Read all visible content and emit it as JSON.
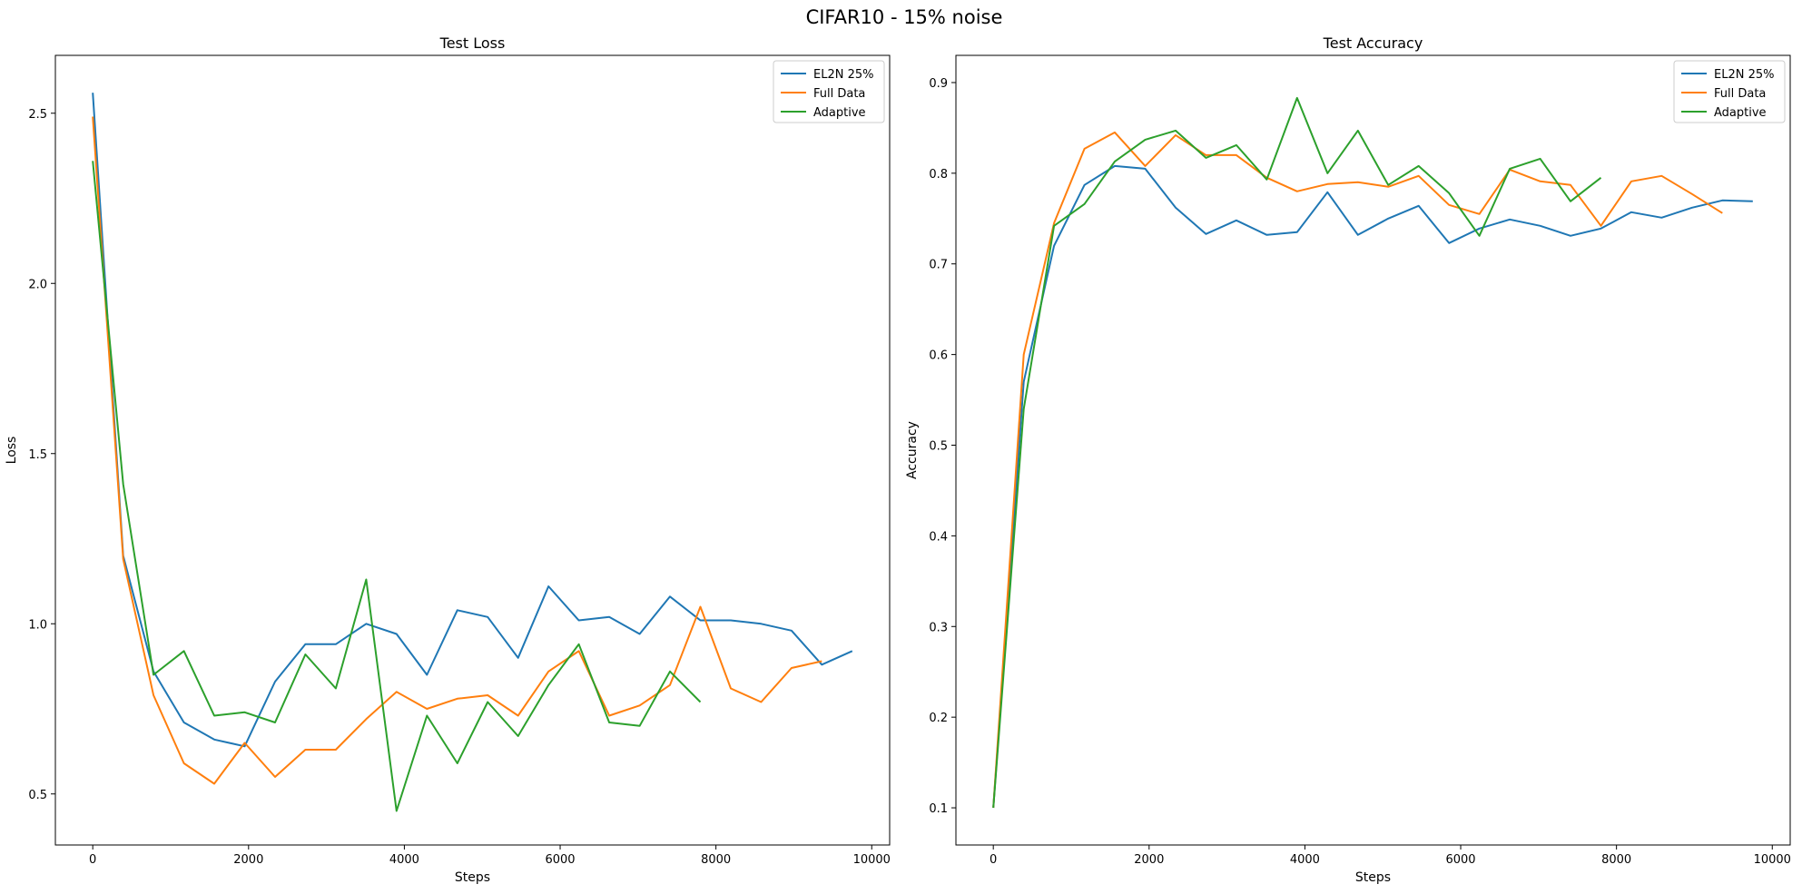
{
  "figure": {
    "title": "CIFAR10 - 15% noise"
  },
  "colors": {
    "el2n": "#1f77b4",
    "full": "#ff7f0e",
    "adaptive": "#2ca02c"
  },
  "chart_data": [
    {
      "type": "line",
      "title": "Test Loss",
      "xlabel": "Steps",
      "ylabel": "Loss",
      "xlim": [
        -480,
        10230
      ],
      "ylim": [
        0.35,
        2.67
      ],
      "xticks": [
        0,
        2000,
        4000,
        6000,
        8000,
        10000
      ],
      "yticks": [
        0.5,
        1.0,
        1.5,
        2.0,
        2.5
      ],
      "ytick_labels": [
        "0.5",
        "1.0",
        "1.5",
        "2.0",
        "2.5"
      ],
      "legend": "top-right",
      "grid": false,
      "series": [
        {
          "name": "EL2N 25%",
          "color": "#1f77b4",
          "x": [
            0,
            390,
            780,
            1170,
            1560,
            1950,
            2340,
            2730,
            3120,
            3510,
            3900,
            4290,
            4680,
            5070,
            5460,
            5850,
            6240,
            6630,
            7020,
            7410,
            7800,
            8190,
            8580,
            8970,
            9360,
            9750
          ],
          "y": [
            2.56,
            1.2,
            0.86,
            0.71,
            0.66,
            0.64,
            0.83,
            0.94,
            0.94,
            1.0,
            0.97,
            0.85,
            1.04,
            1.02,
            0.9,
            1.11,
            1.01,
            1.02,
            0.97,
            1.08,
            1.01,
            1.01,
            1.0,
            0.98,
            0.88,
            0.92
          ]
        },
        {
          "name": "Full Data",
          "color": "#ff7f0e",
          "x": [
            0,
            390,
            780,
            1170,
            1560,
            1950,
            2340,
            2730,
            3120,
            3510,
            3900,
            4290,
            4680,
            5070,
            5460,
            5850,
            6240,
            6630,
            7020,
            7410,
            7800,
            8190,
            8580,
            8970,
            9360
          ],
          "y": [
            2.49,
            1.19,
            0.79,
            0.59,
            0.53,
            0.65,
            0.55,
            0.63,
            0.63,
            0.72,
            0.8,
            0.75,
            0.78,
            0.79,
            0.73,
            0.86,
            0.92,
            0.73,
            0.76,
            0.82,
            1.05,
            0.81,
            0.77,
            0.87,
            0.89
          ]
        },
        {
          "name": "Adaptive",
          "color": "#2ca02c",
          "x": [
            0,
            390,
            780,
            1170,
            1560,
            1950,
            2340,
            2730,
            3120,
            3510,
            3900,
            4290,
            4680,
            5070,
            5460,
            5850,
            6240,
            6630,
            7020,
            7410,
            7800
          ],
          "y": [
            2.36,
            1.41,
            0.85,
            0.92,
            0.73,
            0.74,
            0.71,
            0.91,
            0.81,
            1.13,
            0.45,
            0.73,
            0.59,
            0.77,
            0.67,
            0.82,
            0.94,
            0.71,
            0.7,
            0.86,
            0.77
          ]
        }
      ]
    },
    {
      "type": "line",
      "title": "Test Accuracy",
      "xlabel": "Steps",
      "ylabel": "Accuracy",
      "xlim": [
        -480,
        10230
      ],
      "ylim": [
        0.059,
        0.93
      ],
      "xticks": [
        0,
        2000,
        4000,
        6000,
        8000,
        10000
      ],
      "yticks": [
        0.1,
        0.2,
        0.3,
        0.4,
        0.5,
        0.6,
        0.7,
        0.8,
        0.9
      ],
      "ytick_labels": [
        "0.1",
        "0.2",
        "0.3",
        "0.4",
        "0.5",
        "0.6",
        "0.7",
        "0.8",
        "0.9"
      ],
      "legend": "top-right",
      "grid": false,
      "series": [
        {
          "name": "EL2N 25%",
          "color": "#1f77b4",
          "x": [
            0,
            390,
            780,
            1170,
            1560,
            1950,
            2340,
            2730,
            3120,
            3510,
            3900,
            4290,
            4680,
            5070,
            5460,
            5850,
            6240,
            6630,
            7020,
            7410,
            7800,
            8190,
            8580,
            8970,
            9360,
            9750
          ],
          "y": [
            0.1,
            0.57,
            0.72,
            0.787,
            0.808,
            0.805,
            0.762,
            0.733,
            0.748,
            0.732,
            0.735,
            0.779,
            0.732,
            0.75,
            0.764,
            0.723,
            0.739,
            0.749,
            0.742,
            0.731,
            0.739,
            0.757,
            0.751,
            0.762,
            0.77,
            0.769
          ]
        },
        {
          "name": "Full Data",
          "color": "#ff7f0e",
          "x": [
            0,
            390,
            780,
            1170,
            1560,
            1950,
            2340,
            2730,
            3120,
            3510,
            3900,
            4290,
            4680,
            5070,
            5460,
            5850,
            6240,
            6630,
            7020,
            7410,
            7800,
            8190,
            8580,
            8970,
            9360
          ],
          "y": [
            0.1,
            0.6,
            0.745,
            0.827,
            0.845,
            0.808,
            0.842,
            0.82,
            0.82,
            0.795,
            0.78,
            0.788,
            0.79,
            0.785,
            0.797,
            0.765,
            0.755,
            0.804,
            0.791,
            0.787,
            0.742,
            0.791,
            0.797,
            0.777,
            0.756
          ]
        },
        {
          "name": "Adaptive",
          "color": "#2ca02c",
          "x": [
            0,
            390,
            780,
            1170,
            1560,
            1950,
            2340,
            2730,
            3120,
            3510,
            3900,
            4290,
            4680,
            5070,
            5460,
            5850,
            6240,
            6630,
            7020,
            7410,
            7800
          ],
          "y": [
            0.1,
            0.54,
            0.742,
            0.766,
            0.813,
            0.837,
            0.847,
            0.817,
            0.831,
            0.793,
            0.883,
            0.8,
            0.847,
            0.787,
            0.808,
            0.778,
            0.731,
            0.805,
            0.816,
            0.769,
            0.795
          ]
        }
      ]
    }
  ]
}
